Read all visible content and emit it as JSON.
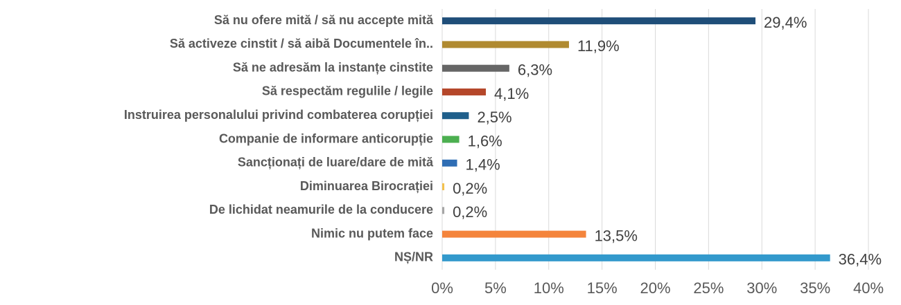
{
  "chart_data": {
    "type": "bar",
    "orientation": "horizontal",
    "categories": [
      "Să nu ofere mită  / să nu accepte mită",
      "Să activeze cinstit / să aibă Documentele în..",
      "Să ne adresăm la instanțe cinstite",
      "Să respectăm regulile / legile",
      "Instruirea personalului privind combaterea corupției",
      "Companie de informare anticorupție",
      "Sancționați de luare/dare de mită",
      "Diminuarea Birocrației",
      "De lichidat neamurile de la conducere",
      "Nimic nu putem face",
      "NȘ/NR"
    ],
    "values": [
      29.4,
      11.9,
      6.3,
      4.1,
      2.5,
      1.6,
      1.4,
      0.2,
      0.2,
      13.5,
      36.4
    ],
    "value_labels": [
      "29,4%",
      "11,9%",
      "6,3%",
      "4,1%",
      "2,5%",
      "1,6%",
      "1,4%",
      "0,2%",
      "0,2%",
      "13,5%",
      "36,4%"
    ],
    "colors": [
      "#1f4e79",
      "#b08a30",
      "#666666",
      "#b5472a",
      "#1f5f8b",
      "#4caf50",
      "#2e6db4",
      "#f2c14e",
      "#a5a5a5",
      "#f4843c",
      "#3399cc"
    ],
    "xlim": [
      0,
      40
    ],
    "xticks": [
      {
        "value": 0,
        "label": "0%"
      },
      {
        "value": 5,
        "label": "5%"
      },
      {
        "value": 10,
        "label": "10%"
      },
      {
        "value": 15,
        "label": "15%"
      },
      {
        "value": 20,
        "label": "20%"
      },
      {
        "value": 25,
        "label": "25%"
      },
      {
        "value": 30,
        "label": "30%"
      },
      {
        "value": 35,
        "label": "35%"
      },
      {
        "value": 40,
        "label": "40%"
      }
    ],
    "grid": true
  }
}
